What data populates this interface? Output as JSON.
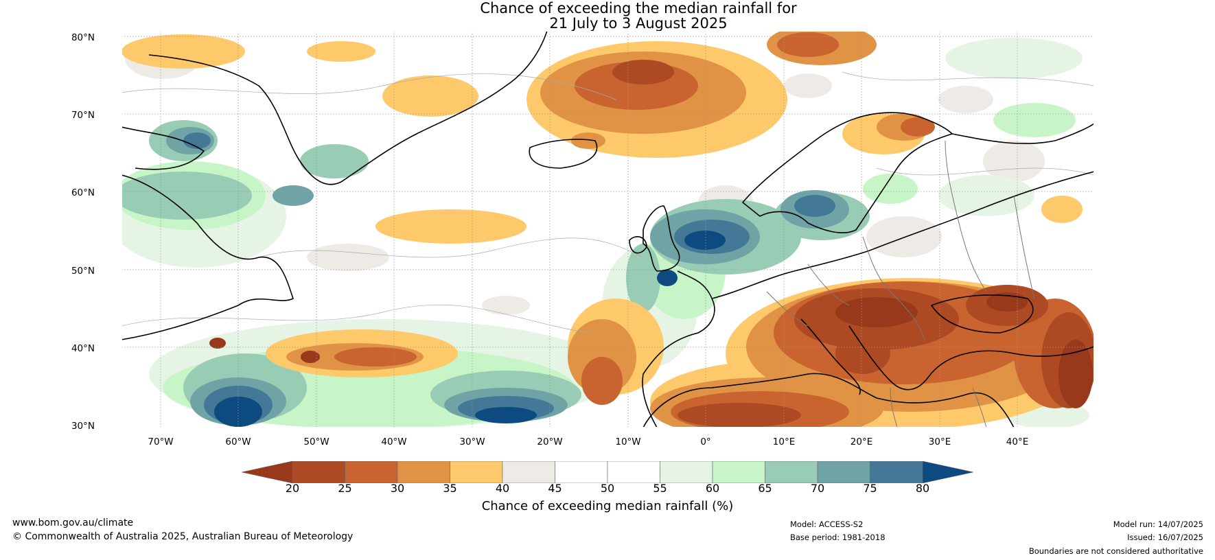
{
  "title": {
    "line1": "Chance of exceeding the median rainfall for",
    "line2": "21 July to 3 August 2025"
  },
  "lat_labels": [
    "80°N",
    "70°N",
    "60°N",
    "50°N",
    "40°N",
    "30°N"
  ],
  "lon_labels": [
    "70°W",
    "60°W",
    "50°W",
    "40°W",
    "30°W",
    "20°W",
    "10°W",
    "0°",
    "10°E",
    "20°E",
    "30°E",
    "40°E"
  ],
  "colorbar": {
    "ticks": [
      "20",
      "25",
      "30",
      "35",
      "40",
      "45",
      "50",
      "55",
      "60",
      "65",
      "70",
      "75",
      "80"
    ],
    "colors": [
      "#97391a",
      "#ad4a24",
      "#c9632f",
      "#e09345",
      "#fdc96b",
      "#eeeae6",
      "#ffffff",
      "#ffffff",
      "#e6f4e6",
      "#c8f5c8",
      "#99ccb4",
      "#6fa3a6",
      "#437896",
      "#0d4a80"
    ],
    "label": "Chance of exceeding median rainfall (%)"
  },
  "footer": {
    "url": "www.bom.gov.au/climate",
    "copyright": "© Commonwealth of Australia 2025, Australian Bureau of Meteorology",
    "model": "Model: ACCESS-S2",
    "base_period": "Base period: 1981-2018",
    "model_run": "Model run: 14/07/2025",
    "issued": "Issued: 16/07/2025",
    "disclaimer": "Boundaries are not considered authoritative"
  }
}
